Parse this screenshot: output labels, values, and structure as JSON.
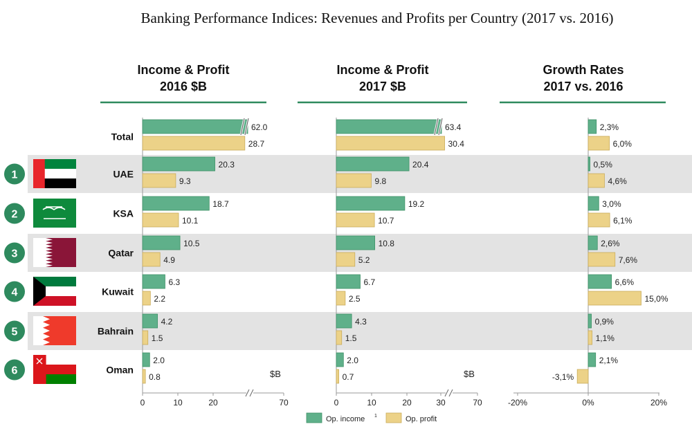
{
  "title": "Banking Performance Indices: Revenues and Profits per Country (2017 vs. 2016)",
  "colors": {
    "income": "#5fb08a",
    "profit": "#ecd288",
    "header_line": "#2e8a5e",
    "row_shade": "#e3e3e3",
    "badge": "#2e8a5e"
  },
  "legend": {
    "income": "Op. income",
    "income_sup": "1",
    "profit": "Op. profit"
  },
  "unit_label": "$B",
  "chart_data": [
    {
      "type": "bar",
      "title": "Income & Profit 2016 $B",
      "title_lines": [
        "Income & Profit",
        "2016 $B"
      ],
      "unit": "$B",
      "categories": [
        "Total",
        "UAE",
        "KSA",
        "Qatar",
        "Kuwait",
        "Bahrain",
        "Oman"
      ],
      "series": [
        {
          "name": "Op. income",
          "values": [
            62.0,
            20.3,
            18.7,
            10.5,
            6.3,
            4.2,
            2.0
          ],
          "labels": [
            "62.0",
            "20.3",
            "18.7",
            "10.5",
            "6.3",
            "4.2",
            "2.0"
          ]
        },
        {
          "name": "Op. profit",
          "values": [
            28.7,
            9.3,
            10.1,
            4.9,
            2.2,
            1.5,
            0.8
          ],
          "labels": [
            "28.7",
            "9.3",
            "10.1",
            "4.9",
            "2.2",
            "1.5",
            "0.8"
          ]
        }
      ],
      "xticks": [
        "0",
        "10",
        "20",
        "70"
      ],
      "axis_break": true
    },
    {
      "type": "bar",
      "title": "Income & Profit 2017 $B",
      "title_lines": [
        "Income & Profit",
        "2017 $B"
      ],
      "unit": "$B",
      "categories": [
        "Total",
        "UAE",
        "KSA",
        "Qatar",
        "Kuwait",
        "Bahrain",
        "Oman"
      ],
      "series": [
        {
          "name": "Op. income",
          "values": [
            63.4,
            20.4,
            19.2,
            10.8,
            6.7,
            4.3,
            2.0
          ],
          "labels": [
            "63.4",
            "20.4",
            "19.2",
            "10.8",
            "6.7",
            "4.3",
            "2.0"
          ]
        },
        {
          "name": "Op. profit",
          "values": [
            30.4,
            9.8,
            10.7,
            5.2,
            2.5,
            1.5,
            0.7
          ],
          "labels": [
            "30.4",
            "9.8",
            "10.7",
            "5.2",
            "2.5",
            "1.5",
            "0.7"
          ]
        }
      ],
      "xticks": [
        "0",
        "10",
        "20",
        "30",
        "70"
      ],
      "axis_break": true
    },
    {
      "type": "bar",
      "title": "Growth Rates 2017 vs. 2016",
      "title_lines": [
        "Growth Rates",
        "2017  vs. 2016"
      ],
      "categories": [
        "Total",
        "UAE",
        "KSA",
        "Qatar",
        "Kuwait",
        "Bahrain",
        "Oman"
      ],
      "series": [
        {
          "name": "Op. income",
          "values": [
            2.3,
            0.5,
            3.0,
            2.6,
            6.6,
            0.9,
            2.1
          ],
          "labels": [
            "2,3%",
            "0,5%",
            "3,0%",
            "2,6%",
            "6,6%",
            "0,9%",
            "2,1%"
          ]
        },
        {
          "name": "Op. profit",
          "values": [
            6.0,
            4.6,
            6.1,
            7.6,
            15.0,
            1.1,
            -3.1
          ],
          "labels": [
            "6,0%",
            "4,6%",
            "6,1%",
            "7,6%",
            "15,0%",
            "1,1%",
            "-3,1%"
          ]
        }
      ],
      "xlim": [
        -20,
        20
      ],
      "xticks": [
        "-20%",
        "0%",
        "20%"
      ]
    }
  ],
  "rows": [
    {
      "label": "Total"
    },
    {
      "label": "UAE",
      "rank": "1",
      "flag": "uae-flag"
    },
    {
      "label": "KSA",
      "rank": "2",
      "flag": "ksa-flag"
    },
    {
      "label": "Qatar",
      "rank": "3",
      "flag": "qatar-flag"
    },
    {
      "label": "Kuwait",
      "rank": "4",
      "flag": "kuwait-flag"
    },
    {
      "label": "Bahrain",
      "rank": "5",
      "flag": "bahrain-flag"
    },
    {
      "label": "Oman",
      "rank": "6",
      "flag": "oman-flag"
    }
  ]
}
